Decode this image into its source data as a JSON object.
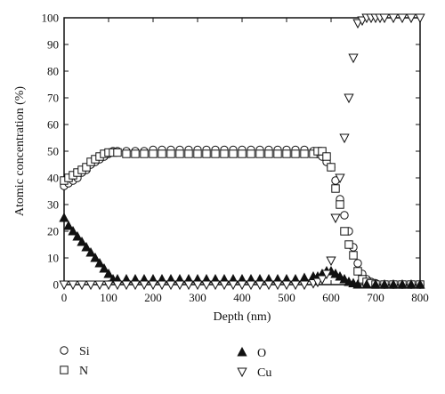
{
  "chart_data": {
    "type": "scatter",
    "title": "",
    "xlabel": "Depth (nm)",
    "ylabel": "Atomic concentration (%)",
    "xlim": [
      0,
      800
    ],
    "ylim": [
      0,
      100
    ],
    "x_ticks": [
      0,
      100,
      200,
      300,
      400,
      500,
      600,
      700,
      800
    ],
    "y_ticks": [
      0,
      10,
      20,
      30,
      40,
      50,
      60,
      70,
      80,
      90,
      100
    ],
    "grid": false,
    "legend_position": "below",
    "series": [
      {
        "name": "Si",
        "marker": "open-circle",
        "points": [
          [
            0,
            37
          ],
          [
            10,
            38
          ],
          [
            20,
            39
          ],
          [
            30,
            40
          ],
          [
            40,
            42
          ],
          [
            50,
            43
          ],
          [
            60,
            45
          ],
          [
            70,
            46
          ],
          [
            80,
            47
          ],
          [
            90,
            48
          ],
          [
            100,
            49
          ],
          [
            110,
            50
          ],
          [
            120,
            50
          ],
          [
            140,
            50
          ],
          [
            160,
            50
          ],
          [
            180,
            50
          ],
          [
            200,
            50.5
          ],
          [
            220,
            50.5
          ],
          [
            240,
            50.5
          ],
          [
            260,
            50.5
          ],
          [
            280,
            50.5
          ],
          [
            300,
            50.5
          ],
          [
            320,
            50.5
          ],
          [
            340,
            50.5
          ],
          [
            360,
            50.5
          ],
          [
            380,
            50.5
          ],
          [
            400,
            50.5
          ],
          [
            420,
            50.5
          ],
          [
            440,
            50.5
          ],
          [
            460,
            50.5
          ],
          [
            480,
            50.5
          ],
          [
            500,
            50.5
          ],
          [
            520,
            50.5
          ],
          [
            540,
            50.5
          ],
          [
            560,
            50
          ],
          [
            570,
            49
          ],
          [
            580,
            48
          ],
          [
            590,
            46
          ],
          [
            600,
            44
          ],
          [
            610,
            39
          ],
          [
            620,
            32
          ],
          [
            630,
            26
          ],
          [
            640,
            20
          ],
          [
            650,
            14
          ],
          [
            660,
            8
          ],
          [
            670,
            4
          ],
          [
            680,
            2
          ],
          [
            690,
            1
          ],
          [
            700,
            0.5
          ],
          [
            720,
            0
          ],
          [
            740,
            0
          ],
          [
            760,
            0
          ],
          [
            780,
            0
          ],
          [
            800,
            0
          ]
        ]
      },
      {
        "name": "N",
        "marker": "open-square",
        "points": [
          [
            0,
            39
          ],
          [
            10,
            40
          ],
          [
            20,
            41
          ],
          [
            30,
            42
          ],
          [
            40,
            43
          ],
          [
            50,
            44
          ],
          [
            60,
            46
          ],
          [
            70,
            47
          ],
          [
            80,
            48
          ],
          [
            90,
            49
          ],
          [
            100,
            49.5
          ],
          [
            110,
            49.5
          ],
          [
            120,
            49.5
          ],
          [
            140,
            49
          ],
          [
            160,
            49
          ],
          [
            180,
            49
          ],
          [
            200,
            49
          ],
          [
            220,
            49
          ],
          [
            240,
            49
          ],
          [
            260,
            49
          ],
          [
            280,
            49
          ],
          [
            300,
            49
          ],
          [
            320,
            49
          ],
          [
            340,
            49
          ],
          [
            360,
            49
          ],
          [
            380,
            49
          ],
          [
            400,
            49
          ],
          [
            420,
            49
          ],
          [
            440,
            49
          ],
          [
            460,
            49
          ],
          [
            480,
            49
          ],
          [
            500,
            49
          ],
          [
            520,
            49
          ],
          [
            540,
            49
          ],
          [
            560,
            49
          ],
          [
            570,
            50
          ],
          [
            580,
            50
          ],
          [
            590,
            48
          ],
          [
            600,
            44
          ],
          [
            610,
            36
          ],
          [
            620,
            30
          ],
          [
            630,
            20
          ],
          [
            640,
            15
          ],
          [
            650,
            11
          ],
          [
            660,
            5
          ],
          [
            670,
            2
          ],
          [
            680,
            1
          ],
          [
            690,
            0.5
          ],
          [
            700,
            0
          ],
          [
            720,
            0
          ],
          [
            740,
            0
          ],
          [
            760,
            0
          ],
          [
            780,
            0
          ],
          [
            800,
            0
          ]
        ]
      },
      {
        "name": "O",
        "marker": "filled-triangle",
        "points": [
          [
            0,
            25
          ],
          [
            10,
            22
          ],
          [
            20,
            20
          ],
          [
            30,
            18
          ],
          [
            40,
            16
          ],
          [
            50,
            14
          ],
          [
            60,
            12
          ],
          [
            70,
            10
          ],
          [
            80,
            8
          ],
          [
            90,
            6
          ],
          [
            100,
            4
          ],
          [
            110,
            2
          ],
          [
            120,
            2
          ],
          [
            140,
            2
          ],
          [
            160,
            2
          ],
          [
            180,
            2
          ],
          [
            200,
            2
          ],
          [
            220,
            2
          ],
          [
            240,
            2
          ],
          [
            260,
            2
          ],
          [
            280,
            2
          ],
          [
            300,
            2
          ],
          [
            320,
            2
          ],
          [
            340,
            2
          ],
          [
            360,
            2
          ],
          [
            380,
            2
          ],
          [
            400,
            2
          ],
          [
            420,
            2
          ],
          [
            440,
            2
          ],
          [
            460,
            2
          ],
          [
            480,
            2
          ],
          [
            500,
            2
          ],
          [
            520,
            2
          ],
          [
            540,
            2.5
          ],
          [
            560,
            3
          ],
          [
            570,
            3
          ],
          [
            580,
            4
          ],
          [
            590,
            5
          ],
          [
            600,
            5
          ],
          [
            610,
            4
          ],
          [
            620,
            3
          ],
          [
            630,
            2
          ],
          [
            640,
            1
          ],
          [
            650,
            0.5
          ],
          [
            660,
            0
          ],
          [
            680,
            0
          ],
          [
            700,
            0
          ],
          [
            720,
            0
          ],
          [
            740,
            0
          ],
          [
            760,
            0
          ],
          [
            780,
            0
          ],
          [
            800,
            0
          ]
        ]
      },
      {
        "name": "Cu",
        "marker": "open-triangle-down",
        "points": [
          [
            0,
            0
          ],
          [
            20,
            0
          ],
          [
            40,
            0
          ],
          [
            60,
            0
          ],
          [
            80,
            0
          ],
          [
            100,
            0
          ],
          [
            120,
            0
          ],
          [
            140,
            0
          ],
          [
            160,
            0
          ],
          [
            180,
            0
          ],
          [
            200,
            0
          ],
          [
            220,
            0
          ],
          [
            240,
            0
          ],
          [
            260,
            0
          ],
          [
            280,
            0
          ],
          [
            300,
            0
          ],
          [
            320,
            0
          ],
          [
            340,
            0
          ],
          [
            360,
            0
          ],
          [
            380,
            0
          ],
          [
            400,
            0
          ],
          [
            420,
            0
          ],
          [
            440,
            0
          ],
          [
            460,
            0
          ],
          [
            480,
            0
          ],
          [
            500,
            0
          ],
          [
            520,
            0
          ],
          [
            540,
            0
          ],
          [
            560,
            0.5
          ],
          [
            570,
            1
          ],
          [
            580,
            2
          ],
          [
            590,
            4
          ],
          [
            600,
            9
          ],
          [
            610,
            25
          ],
          [
            620,
            40
          ],
          [
            630,
            55
          ],
          [
            640,
            70
          ],
          [
            650,
            85
          ],
          [
            660,
            98
          ],
          [
            670,
            99
          ],
          [
            680,
            100
          ],
          [
            690,
            100
          ],
          [
            700,
            100
          ],
          [
            710,
            100
          ],
          [
            720,
            100
          ],
          [
            740,
            100
          ],
          [
            760,
            100
          ],
          [
            780,
            100
          ],
          [
            800,
            100
          ]
        ]
      }
    ]
  }
}
